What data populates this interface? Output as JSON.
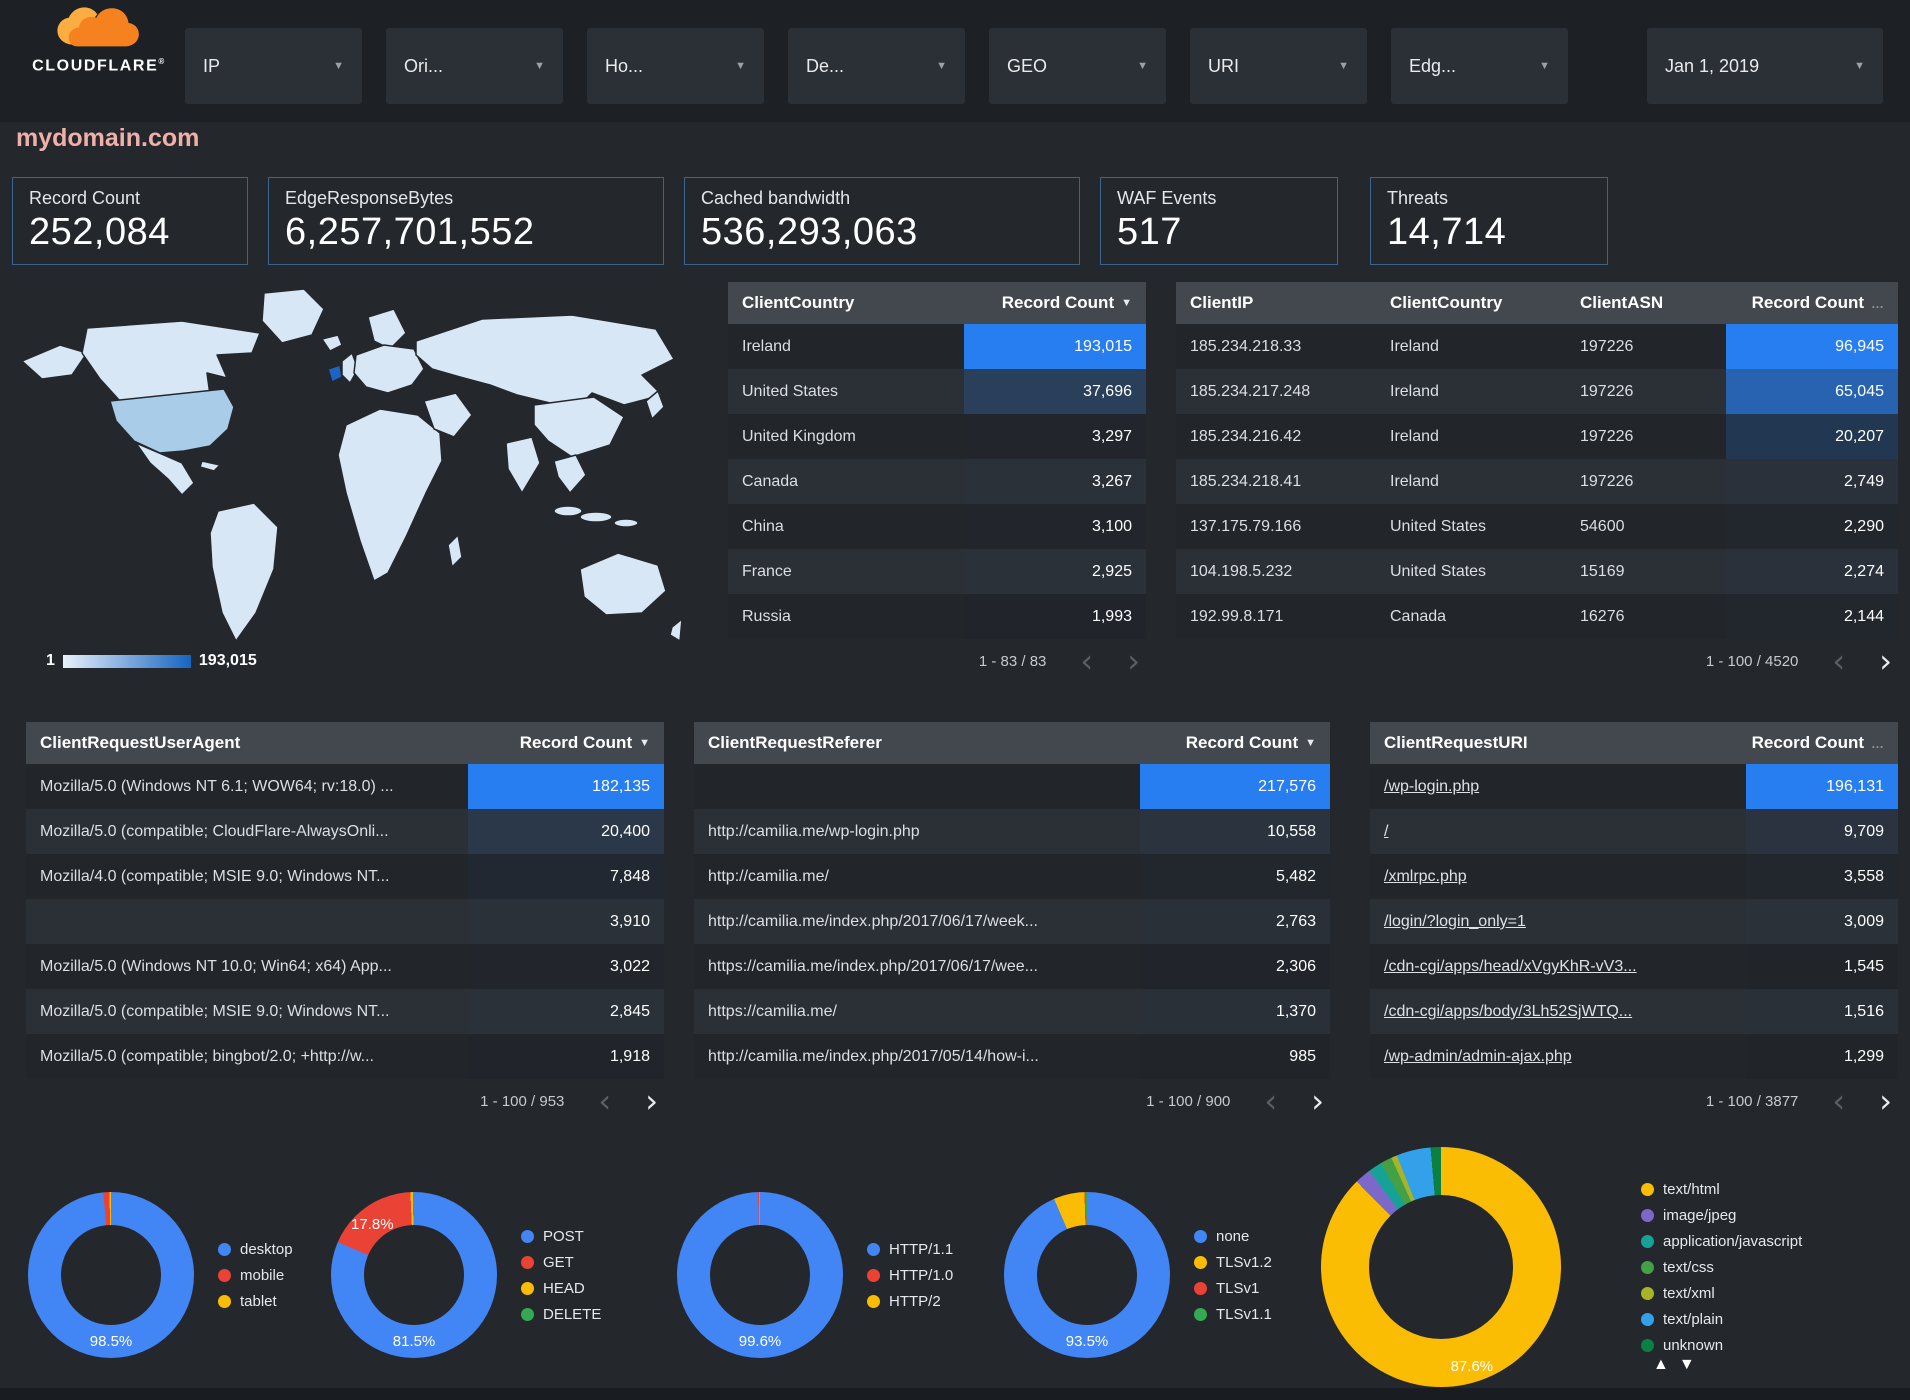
{
  "brand": {
    "name": "CLOUDFLARE"
  },
  "topbar": {
    "filters": [
      {
        "label": "IP"
      },
      {
        "label": "Ori..."
      },
      {
        "label": "Ho..."
      },
      {
        "label": "De..."
      },
      {
        "label": "GEO"
      },
      {
        "label": "URI"
      },
      {
        "label": "Edg..."
      }
    ],
    "date_filter": "Jan 1, 2019",
    "chevron": "▼"
  },
  "page_title": "mydomain.com",
  "scorecards": [
    {
      "label": "Record Count",
      "value": "252,084"
    },
    {
      "label": "EdgeResponseBytes",
      "value": "6,257,701,552"
    },
    {
      "label": "Cached bandwidth",
      "value": "536,293,063"
    },
    {
      "label": "WAF Events",
      "value": "517"
    },
    {
      "label": "Threats",
      "value": "14,714"
    }
  ],
  "map": {
    "legend_min": "1",
    "legend_max": "193,015"
  },
  "colors": {
    "accent_blue": "#277EF0",
    "map_gradient_low": "#E9F1FB",
    "map_gradient_high": "#1565C0",
    "card_border": "#39648F",
    "title_pink": "#F0B0AA"
  },
  "tables": {
    "client_country": {
      "columns": [
        "ClientCountry",
        "Record Count"
      ],
      "sort_icon": "▼",
      "rows": [
        [
          "Ireland",
          "193,015"
        ],
        [
          "United States",
          "37,696"
        ],
        [
          "United Kingdom",
          "3,297"
        ],
        [
          "Canada",
          "3,267"
        ],
        [
          "China",
          "3,100"
        ],
        [
          "France",
          "2,925"
        ],
        [
          "Russia",
          "1,993"
        ]
      ],
      "pagination": "1 - 83 / 83",
      "prev_enabled": false,
      "next_enabled": false
    },
    "client_ip": {
      "columns": [
        "ClientIP",
        "ClientCountry",
        "ClientASN",
        "Record Count"
      ],
      "sort_icon": "…",
      "rows": [
        [
          "185.234.218.33",
          "Ireland",
          "197226",
          "96,945"
        ],
        [
          "185.234.217.248",
          "Ireland",
          "197226",
          "65,045"
        ],
        [
          "185.234.216.42",
          "Ireland",
          "197226",
          "20,207"
        ],
        [
          "185.234.218.41",
          "Ireland",
          "197226",
          "2,749"
        ],
        [
          "137.175.79.166",
          "United States",
          "54600",
          "2,290"
        ],
        [
          "104.198.5.232",
          "United States",
          "15169",
          "2,274"
        ],
        [
          "192.99.8.171",
          "Canada",
          "16276",
          "2,144"
        ]
      ],
      "pagination": "1 - 100 / 4520",
      "prev_enabled": false,
      "next_enabled": true
    },
    "user_agent": {
      "columns": [
        "ClientRequestUserAgent",
        "Record Count"
      ],
      "sort_icon": "▼",
      "rows": [
        [
          "Mozilla/5.0 (Windows NT 6.1; WOW64; rv:18.0) ...",
          "182,135"
        ],
        [
          "Mozilla/5.0 (compatible; CloudFlare-AlwaysOnli...",
          "20,400"
        ],
        [
          "Mozilla/4.0 (compatible; MSIE 9.0; Windows NT...",
          "7,848"
        ],
        [
          "",
          "3,910"
        ],
        [
          "Mozilla/5.0 (Windows NT 10.0; Win64; x64) App...",
          "3,022"
        ],
        [
          "Mozilla/5.0 (compatible; MSIE 9.0; Windows NT...",
          "2,845"
        ],
        [
          "Mozilla/5.0 (compatible; bingbot/2.0; +http://w...",
          "1,918"
        ]
      ],
      "pagination": "1 - 100 / 953",
      "prev_enabled": false,
      "next_enabled": true
    },
    "referer": {
      "columns": [
        "ClientRequestReferer",
        "Record Count"
      ],
      "sort_icon": "▼",
      "rows": [
        [
          "",
          "217,576"
        ],
        [
          "http://camilia.me/wp-login.php",
          "10,558"
        ],
        [
          "http://camilia.me/",
          "5,482"
        ],
        [
          "http://camilia.me/index.php/2017/06/17/week...",
          "2,763"
        ],
        [
          "https://camilia.me/index.php/2017/06/17/wee...",
          "2,306"
        ],
        [
          "https://camilia.me/",
          "1,370"
        ],
        [
          "http://camilia.me/index.php/2017/05/14/how-i...",
          "985"
        ]
      ],
      "pagination": "1 - 100 / 900",
      "prev_enabled": false,
      "next_enabled": true
    },
    "request_uri": {
      "columns": [
        "ClientRequestURI",
        "Record Count"
      ],
      "sort_icon": "…",
      "links": true,
      "rows": [
        [
          "/wp-login.php",
          "196,131"
        ],
        [
          "/",
          "9,709"
        ],
        [
          "/xmlrpc.php",
          "3,558"
        ],
        [
          "/login/?login_only=1",
          "3,009"
        ],
        [
          "/cdn-cgi/apps/head/xVgyKhR-vV3...",
          "1,545"
        ],
        [
          "/cdn-cgi/apps/body/3Lh52SjWTQ...",
          "1,516"
        ],
        [
          "/wp-admin/admin-ajax.php",
          "1,299"
        ]
      ],
      "pagination": "1 - 100 / 3877",
      "prev_enabled": false,
      "next_enabled": true
    }
  },
  "chart_data": [
    {
      "type": "pie",
      "labels": [
        "desktop",
        "mobile",
        "tablet"
      ],
      "values": [
        98.5,
        1.2,
        0.3
      ],
      "colors": [
        "#4285F4",
        "#EA4335",
        "#FBBC04"
      ],
      "annotations": [
        {
          "text": "98.5%",
          "position": "bottom"
        }
      ]
    },
    {
      "type": "pie",
      "labels": [
        "POST",
        "GET",
        "HEAD",
        "DELETE"
      ],
      "values": [
        81.5,
        17.8,
        0.5,
        0.2
      ],
      "colors": [
        "#4285F4",
        "#EA4335",
        "#FBBC04",
        "#34A853"
      ],
      "annotations": [
        {
          "text": "17.8%",
          "position": "top-left"
        },
        {
          "text": "81.5%",
          "position": "bottom"
        }
      ]
    },
    {
      "type": "pie",
      "labels": [
        "HTTP/1.1",
        "HTTP/1.0",
        "HTTP/2"
      ],
      "values": [
        99.6,
        0.3,
        0.1
      ],
      "colors": [
        "#4285F4",
        "#EA4335",
        "#FBBC04"
      ],
      "annotations": [
        {
          "text": "99.6%",
          "position": "bottom"
        }
      ]
    },
    {
      "type": "pie",
      "labels": [
        "none",
        "TLSv1.2",
        "TLSv1",
        "TLSv1.1"
      ],
      "values": [
        93.5,
        6.0,
        0.3,
        0.2
      ],
      "colors": [
        "#4285F4",
        "#FBBC04",
        "#EA4335",
        "#34A853"
      ],
      "annotations": [
        {
          "text": "93.5%",
          "position": "bottom"
        }
      ]
    },
    {
      "type": "pie",
      "labels": [
        "text/html",
        "image/jpeg",
        "application/javascript",
        "text/css",
        "text/xml",
        "text/plain",
        "unknown"
      ],
      "values": [
        87.6,
        2.2,
        1.8,
        1.6,
        0.8,
        4.6,
        1.4
      ],
      "colors": [
        "#FBBC04",
        "#7B68C9",
        "#16A296",
        "#43A047",
        "#A8B325",
        "#33A0EA",
        "#0B8043"
      ],
      "annotations": [
        {
          "text": "87.6%",
          "position": "bottom-right"
        }
      ]
    }
  ],
  "pagination_icons": {
    "prev": "‹",
    "next": "›"
  },
  "sort_arrows": {
    "up": "▲",
    "down": "▼"
  }
}
